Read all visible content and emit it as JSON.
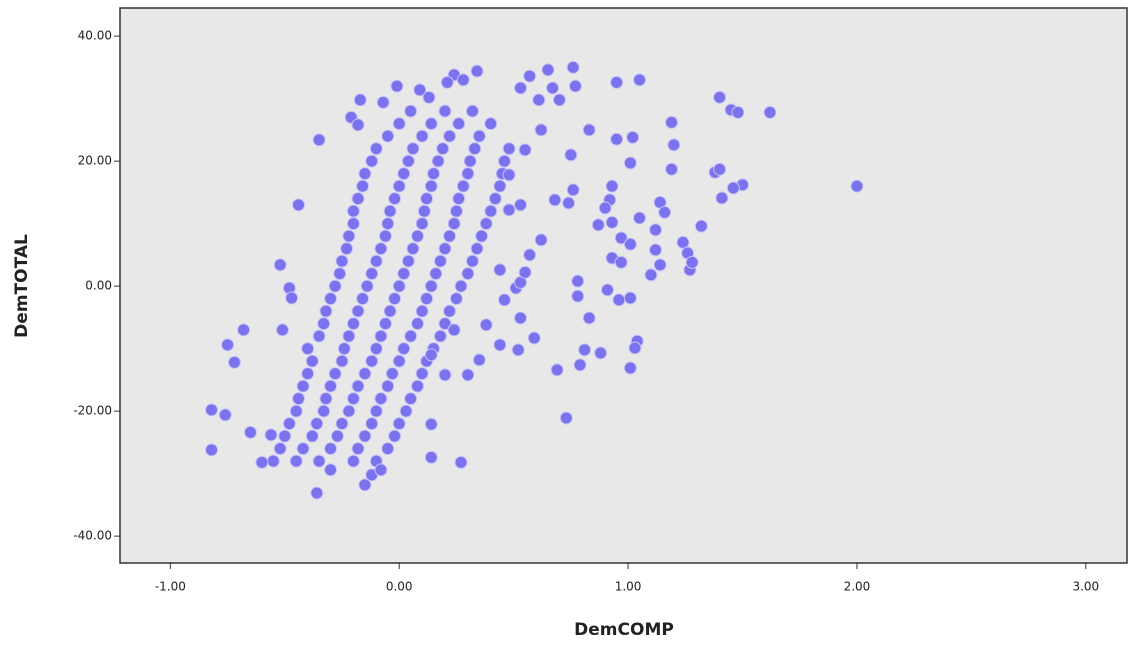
{
  "chart_data": {
    "type": "scatter",
    "x_label": "DemCOMP",
    "y_label": "DemTOTAL",
    "color": "#7b72ee",
    "xlim": [
      -1.22,
      3.18
    ],
    "ylim": [
      -44.3,
      44.5
    ],
    "xticks": [
      {
        "value": -1,
        "label": "-1.00"
      },
      {
        "value": 0,
        "label": "0.00"
      },
      {
        "value": 1,
        "label": "1.00"
      },
      {
        "value": 2,
        "label": "2.00"
      },
      {
        "value": 3,
        "label": "3.00"
      }
    ],
    "yticks": [
      {
        "value": -40,
        "label": "-40.00"
      },
      {
        "value": -20,
        "label": "-20.00"
      },
      {
        "value": 0,
        "label": "0.00"
      },
      {
        "value": 20,
        "label": "20.00"
      },
      {
        "value": 40,
        "label": "40.00"
      }
    ],
    "x": [
      -0.55,
      -0.45,
      -0.35,
      -0.2,
      -0.1,
      -0.52,
      -0.42,
      -0.3,
      -0.18,
      -0.05,
      -0.5,
      -0.38,
      -0.27,
      -0.15,
      -0.02,
      -0.48,
      -0.36,
      -0.25,
      -0.12,
      0.0,
      -0.45,
      -0.33,
      -0.22,
      -0.1,
      0.03,
      -0.44,
      -0.32,
      -0.2,
      -0.08,
      0.05,
      -0.42,
      -0.3,
      -0.18,
      -0.05,
      0.08,
      -0.4,
      -0.28,
      -0.15,
      -0.03,
      0.1,
      -0.38,
      -0.25,
      -0.12,
      0.0,
      0.12,
      -0.4,
      -0.24,
      -0.1,
      0.02,
      0.15,
      -0.35,
      -0.22,
      -0.08,
      0.05,
      0.18,
      -0.33,
      -0.2,
      -0.06,
      0.08,
      0.2,
      -0.32,
      -0.18,
      -0.04,
      0.1,
      0.22,
      -0.3,
      -0.16,
      -0.02,
      0.12,
      0.25,
      -0.28,
      -0.14,
      0.0,
      0.14,
      0.27,
      -0.26,
      -0.12,
      0.02,
      0.16,
      0.3,
      -0.25,
      -0.1,
      0.04,
      0.18,
      0.32,
      -0.23,
      -0.08,
      0.06,
      0.2,
      0.34,
      -0.22,
      -0.06,
      0.08,
      0.22,
      0.36,
      -0.2,
      -0.05,
      0.1,
      0.24,
      0.38,
      -0.2,
      -0.04,
      0.11,
      0.25,
      0.4,
      -0.18,
      -0.02,
      0.12,
      0.26,
      0.42,
      -0.16,
      0.0,
      0.14,
      0.28,
      0.44,
      -0.15,
      0.02,
      0.15,
      0.3,
      0.45,
      -0.12,
      0.04,
      0.17,
      0.31,
      0.46,
      -0.1,
      0.06,
      0.19,
      0.33,
      0.48,
      -0.05,
      0.1,
      0.22,
      0.35,
      0.0,
      0.14,
      0.26,
      0.4,
      0.05,
      0.2,
      0.32,
      2.0,
      1.62,
      1.4,
      1.45,
      1.48,
      1.5,
      1.38,
      1.4,
      1.41,
      1.46,
      1.32,
      1.27,
      1.24,
      1.26,
      1.28,
      1.19,
      1.2,
      1.19,
      1.14,
      1.16,
      1.05,
      1.12,
      1.12,
      1.14,
      1.1,
      1.05,
      0.95,
      1.02,
      0.95,
      1.01,
      0.93,
      0.92,
      0.9,
      0.93,
      0.87,
      0.97,
      1.01,
      0.93,
      0.97,
      0.91,
      0.96,
      1.01,
      1.04,
      1.03,
      1.01,
      0.88,
      0.81,
      0.79,
      0.83,
      0.78,
      0.78,
      0.83,
      0.76,
      0.74,
      0.68,
      0.73,
      0.69,
      0.75,
      0.77,
      0.76,
      0.65,
      0.67,
      0.7,
      0.61,
      0.57,
      0.53,
      0.59,
      0.53,
      0.52,
      0.44,
      0.35,
      0.3,
      0.24,
      0.38,
      0.46,
      0.51,
      0.53,
      0.55,
      0.57,
      0.62,
      0.44,
      0.48,
      0.53,
      0.48,
      0.55,
      0.62,
      0.27,
      0.14,
      0.14,
      0.2,
      0.14,
      -0.82,
      -0.82,
      -0.76,
      -0.65,
      -0.75,
      -0.72,
      -0.68,
      -0.6,
      -0.56,
      -0.52,
      -0.51,
      -0.48,
      -0.47,
      -0.44,
      -0.36,
      -0.35,
      -0.3,
      -0.15,
      -0.12,
      -0.08,
      -0.21,
      -0.18,
      -0.17,
      -0.07,
      -0.01,
      0.09,
      0.13,
      0.24,
      0.34,
      0.28,
      0.21
    ],
    "values": [
      -28,
      -28,
      -28,
      -28,
      -28,
      -26,
      -26,
      -26,
      -26,
      -26,
      -24,
      -24,
      -24,
      -24,
      -24,
      -22,
      -22,
      -22,
      -22,
      -22,
      -20,
      -20,
      -20,
      -20,
      -20,
      -18,
      -18,
      -18,
      -18,
      -18,
      -16,
      -16,
      -16,
      -16,
      -16,
      -14,
      -14,
      -14,
      -14,
      -14,
      -12,
      -12,
      -12,
      -12,
      -12,
      -10,
      -10,
      -10,
      -10,
      -10,
      -8,
      -8,
      -8,
      -8,
      -8,
      -6,
      -6,
      -6,
      -6,
      -6,
      -4,
      -4,
      -4,
      -4,
      -4,
      -2,
      -2,
      -2,
      -2,
      -2,
      0,
      0,
      0,
      0,
      0,
      2,
      2,
      2,
      2,
      2,
      4,
      4,
      4,
      4,
      4,
      6,
      6,
      6,
      6,
      6,
      8,
      8,
      8,
      8,
      8,
      10,
      10,
      10,
      10,
      10,
      12,
      12,
      12,
      12,
      12,
      14,
      14,
      14,
      14,
      14,
      16,
      16,
      16,
      16,
      16,
      18,
      18,
      18,
      18,
      18,
      20,
      20,
      20,
      20,
      20,
      22,
      22,
      22,
      22,
      22,
      24,
      24,
      24,
      24,
      26,
      26,
      26,
      26,
      28,
      28,
      28,
      16.0,
      27.8,
      30.2,
      28.2,
      27.8,
      16.2,
      18.2,
      18.7,
      14.1,
      15.7,
      9.6,
      2.6,
      7.0,
      5.3,
      3.8,
      26.2,
      22.6,
      18.7,
      13.4,
      11.8,
      10.9,
      9.0,
      5.8,
      3.4,
      1.8,
      33.0,
      32.6,
      23.8,
      23.5,
      19.7,
      16.0,
      13.8,
      12.5,
      10.2,
      9.8,
      7.7,
      6.7,
      4.5,
      3.8,
      -0.6,
      -2.2,
      -1.9,
      -8.8,
      -9.9,
      -13.1,
      -10.7,
      -10.2,
      -12.6,
      -5.1,
      -1.6,
      0.8,
      25.0,
      15.4,
      13.3,
      13.8,
      -21.1,
      -13.4,
      21.0,
      32.0,
      35.0,
      34.6,
      31.7,
      29.8,
      29.8,
      33.6,
      31.7,
      -8.3,
      -5.1,
      -10.2,
      -9.4,
      -11.8,
      -14.2,
      -7.0,
      -6.2,
      -2.2,
      -0.3,
      0.6,
      2.2,
      5.0,
      7.4,
      2.6,
      12.2,
      13.0,
      17.8,
      21.8,
      25.0,
      -28.2,
      -27.4,
      -22.1,
      -14.2,
      -11.0,
      -26.2,
      -19.8,
      -20.6,
      -23.4,
      -9.4,
      -12.2,
      -7.0,
      -28.2,
      -23.8,
      3.4,
      -7.0,
      -0.3,
      -1.9,
      13.0,
      -33.1,
      23.4,
      -29.4,
      -31.8,
      -30.2,
      -29.4,
      27.0,
      25.8,
      29.8,
      29.4,
      32.0,
      31.4,
      30.2,
      33.8,
      34.4,
      33.0,
      32.6
    ]
  }
}
